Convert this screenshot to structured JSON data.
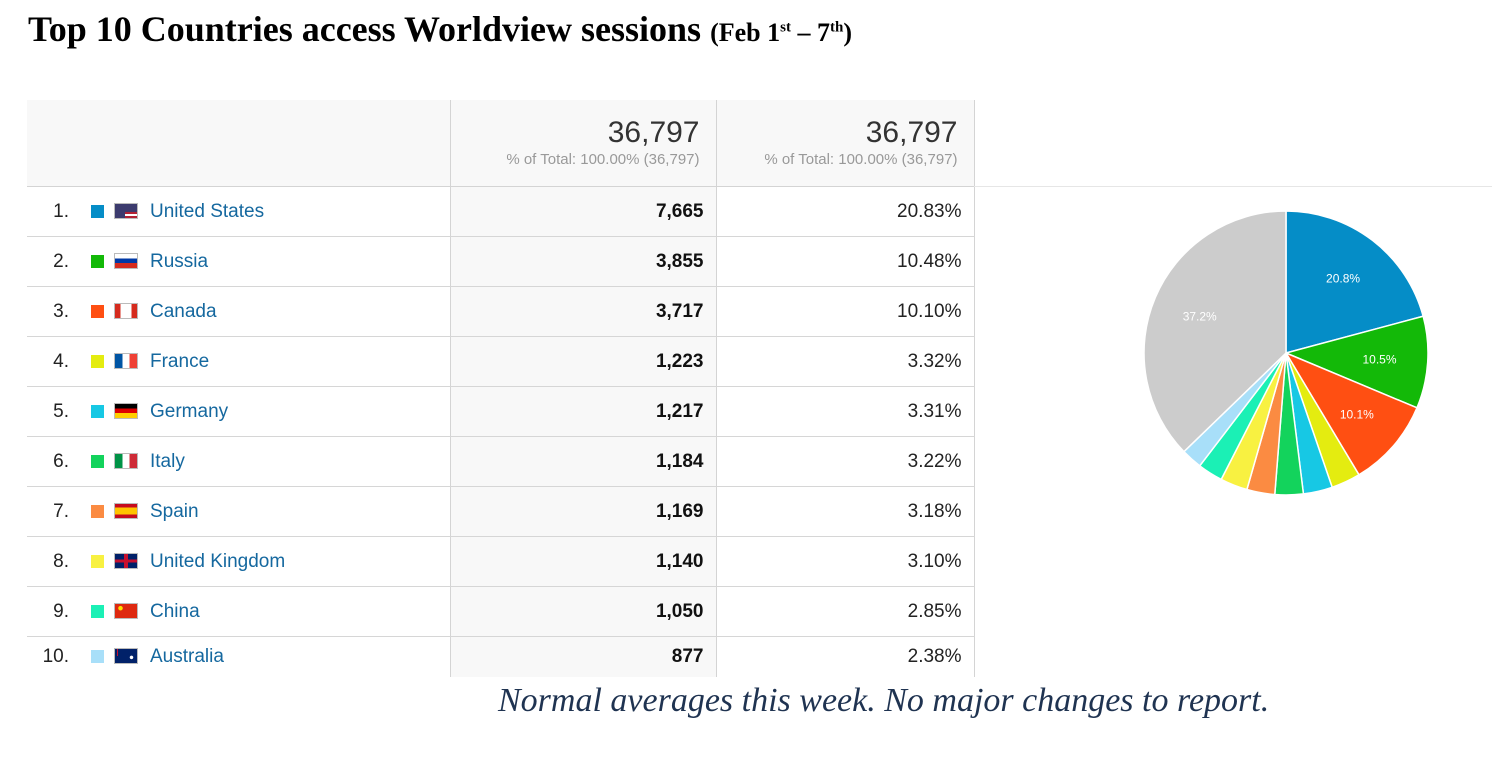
{
  "header": {
    "title_main": "Top 10 Countries access Worldview sessions",
    "title_sub_a": "(Feb 1",
    "title_sub_a_sup": "st",
    "title_sub_b": " – 7",
    "title_sub_b_sup": "th",
    "title_sub_c": ")"
  },
  "table": {
    "col1_total": "36,797",
    "col1_total_sub": "% of Total: 100.00% (36,797)",
    "col2_total": "36,797",
    "col2_total_sub": "% of Total: 100.00% (36,797)",
    "rows": [
      {
        "rank": "1.",
        "country": "United States",
        "flag": "us-flag",
        "swatch": "#058dc7",
        "sessions": "7,665",
        "percent": "20.83%"
      },
      {
        "rank": "2.",
        "country": "Russia",
        "flag": "ru-flag",
        "swatch": "#13b908",
        "sessions": "3,855",
        "percent": "10.48%"
      },
      {
        "rank": "3.",
        "country": "Canada",
        "flag": "ca-flag",
        "swatch": "#ff4f12",
        "sessions": "3,717",
        "percent": "10.10%"
      },
      {
        "rank": "4.",
        "country": "France",
        "flag": "fr-flag",
        "swatch": "#e4ec10",
        "sessions": "1,223",
        "percent": "3.32%"
      },
      {
        "rank": "5.",
        "country": "Germany",
        "flag": "de-flag",
        "swatch": "#17c8e4",
        "sessions": "1,217",
        "percent": "3.31%"
      },
      {
        "rank": "6.",
        "country": "Italy",
        "flag": "it-flag",
        "swatch": "#13d35c",
        "sessions": "1,184",
        "percent": "3.22%"
      },
      {
        "rank": "7.",
        "country": "Spain",
        "flag": "es-flag",
        "swatch": "#fb8b42",
        "sessions": "1,169",
        "percent": "3.18%"
      },
      {
        "rank": "8.",
        "country": "United Kingdom",
        "flag": "gb-flag",
        "swatch": "#f8f141",
        "sessions": "1,140",
        "percent": "3.10%"
      },
      {
        "rank": "9.",
        "country": "China",
        "flag": "cn-flag",
        "swatch": "#1bf0b5",
        "sessions": "1,050",
        "percent": "2.85%"
      },
      {
        "rank": "10.",
        "country": "Australia",
        "flag": "au-flag",
        "swatch": "#a8dff9",
        "sessions": "877",
        "percent": "2.38%"
      }
    ]
  },
  "chart_data": {
    "type": "pie",
    "title": "",
    "categories": [
      "United States",
      "Russia",
      "Canada",
      "France",
      "Germany",
      "Italy",
      "Spain",
      "United Kingdom",
      "China",
      "Australia",
      "(other)"
    ],
    "values": [
      20.83,
      10.48,
      10.1,
      3.32,
      3.31,
      3.22,
      3.18,
      3.1,
      2.85,
      2.38,
      37.23
    ],
    "colors": [
      "#058dc7",
      "#13b908",
      "#ff4f12",
      "#e4ec10",
      "#17c8e4",
      "#13d35c",
      "#fb8b42",
      "#f8f141",
      "#1bf0b5",
      "#a8dff9",
      "#cccccc"
    ],
    "slice_labels": [
      "20.8%",
      "10.5%",
      "10.1%",
      "",
      "",
      "",
      "",
      "",
      "",
      "",
      "37.2%"
    ],
    "start": "12 o'clock, clockwise",
    "legend": "none"
  },
  "footer": {
    "note": "Normal averages this week.  No major changes to report."
  }
}
